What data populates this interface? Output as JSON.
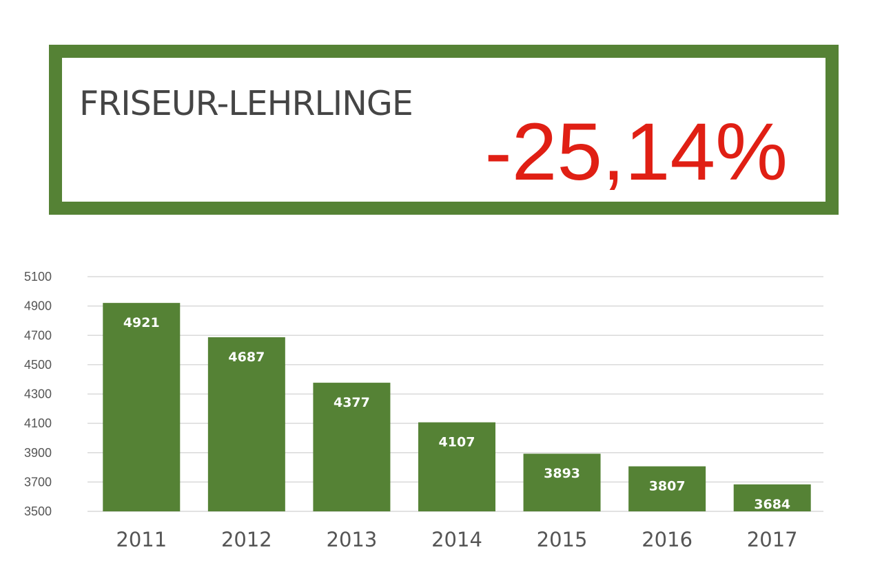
{
  "headline": {
    "title": "FRISEUR-LEHRLINGE",
    "change": "-25,14%"
  },
  "colors": {
    "accent": "#558235",
    "bar": "#558235",
    "change": "#e01f14",
    "text": "#454545",
    "grid": "#d9d9d9"
  },
  "chart_data": {
    "type": "bar",
    "categories": [
      "2011",
      "2012",
      "2013",
      "2014",
      "2015",
      "2016",
      "2017"
    ],
    "values": [
      4921,
      4687,
      4377,
      4107,
      3893,
      3807,
      3684
    ],
    "title": "",
    "xlabel": "",
    "ylabel": "",
    "ylim": [
      3500,
      5100
    ],
    "yticks": [
      3500,
      3700,
      3900,
      4100,
      4300,
      4500,
      4700,
      4900,
      5100
    ],
    "grid": true,
    "data_labels": true
  }
}
